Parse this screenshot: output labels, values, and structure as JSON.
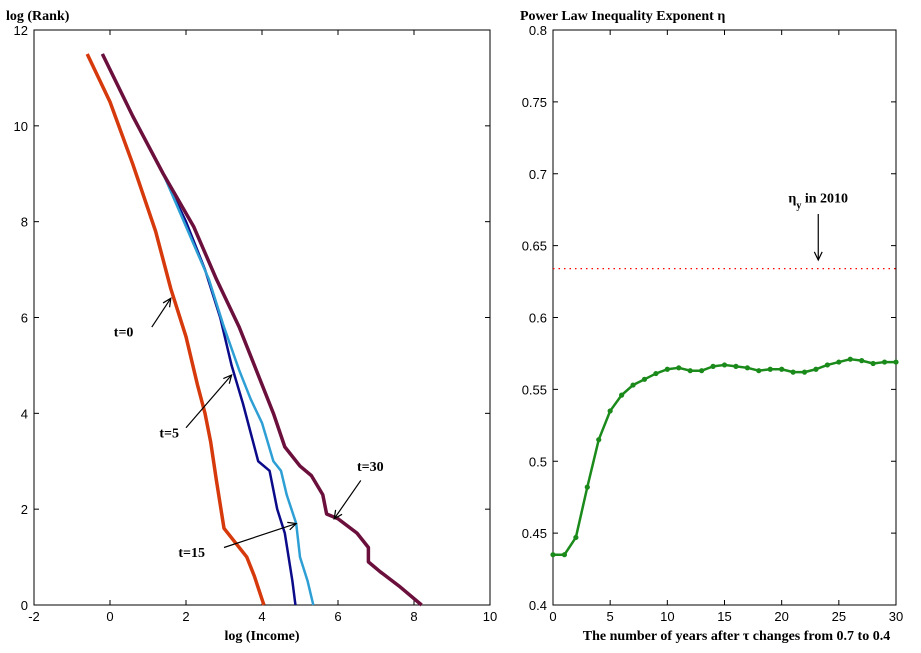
{
  "chart_data": [
    {
      "type": "line",
      "title": "log (Rank)",
      "xlabel": "log (Income)",
      "ylabel": "",
      "xlim": [
        -2,
        10
      ],
      "ylim": [
        0,
        12
      ],
      "xticks": [
        "-2",
        "0",
        "2",
        "4",
        "6",
        "8",
        "10"
      ],
      "yticks": [
        "0",
        "2",
        "4",
        "6",
        "8",
        "10",
        "12"
      ],
      "series": [
        {
          "color": "#d63a0c",
          "width": 3.5,
          "points": [
            [
              -0.6,
              11.5
            ],
            [
              0,
              10.5
            ],
            [
              0.6,
              9.2
            ],
            [
              1.2,
              7.8
            ],
            [
              1.6,
              6.6
            ],
            [
              2.0,
              5.6
            ],
            [
              2.3,
              4.6
            ],
            [
              2.5,
              4.0
            ],
            [
              2.65,
              3.4
            ],
            [
              2.8,
              2.6
            ],
            [
              2.9,
              2.1
            ],
            [
              3.0,
              1.6
            ],
            [
              3.3,
              1.3
            ],
            [
              3.6,
              1.0
            ],
            [
              3.8,
              0.6
            ],
            [
              4.05,
              0
            ]
          ]
        },
        {
          "color": "#0b0b8a",
          "width": 2.5,
          "points": [
            [
              -0.2,
              11.5
            ],
            [
              0.6,
              10.2
            ],
            [
              1.4,
              9.0
            ],
            [
              2.0,
              8.0
            ],
            [
              2.5,
              7.0
            ],
            [
              2.9,
              6.0
            ],
            [
              3.2,
              5.0
            ],
            [
              3.5,
              4.2
            ],
            [
              3.7,
              3.6
            ],
            [
              3.9,
              3.0
            ],
            [
              4.2,
              2.8
            ],
            [
              4.4,
              2.0
            ],
            [
              4.6,
              1.5
            ],
            [
              4.7,
              1.0
            ],
            [
              4.8,
              0.5
            ],
            [
              4.88,
              0
            ]
          ]
        },
        {
          "color": "#2e9fd4",
          "width": 2.5,
          "points": [
            [
              -0.2,
              11.5
            ],
            [
              0.6,
              10.2
            ],
            [
              1.4,
              9.0
            ],
            [
              2.0,
              7.9
            ],
            [
              2.6,
              6.8
            ],
            [
              3.0,
              5.8
            ],
            [
              3.4,
              4.9
            ],
            [
              3.7,
              4.3
            ],
            [
              4.0,
              3.8
            ],
            [
              4.3,
              3.0
            ],
            [
              4.5,
              2.8
            ],
            [
              4.65,
              2.3
            ],
            [
              4.9,
              1.7
            ],
            [
              5.0,
              1.0
            ],
            [
              5.2,
              0.5
            ],
            [
              5.35,
              0
            ]
          ]
        },
        {
          "color": "#6b0f3c",
          "width": 3.5,
          "points": [
            [
              -0.2,
              11.5
            ],
            [
              0.6,
              10.2
            ],
            [
              1.4,
              9.0
            ],
            [
              2.2,
              7.9
            ],
            [
              2.8,
              6.8
            ],
            [
              3.4,
              5.8
            ],
            [
              3.9,
              4.8
            ],
            [
              4.3,
              4.0
            ],
            [
              4.6,
              3.3
            ],
            [
              5.0,
              2.9
            ],
            [
              5.3,
              2.7
            ],
            [
              5.6,
              2.3
            ],
            [
              5.7,
              1.9
            ],
            [
              6.0,
              1.8
            ],
            [
              6.5,
              1.5
            ],
            [
              6.8,
              1.2
            ],
            [
              6.8,
              0.9
            ],
            [
              7.1,
              0.7
            ],
            [
              7.6,
              0.4
            ],
            [
              8.2,
              0
            ]
          ]
        }
      ],
      "annotations": [
        {
          "text": "t=0",
          "text_xy": [
            0.1,
            5.6
          ],
          "arrow_from": [
            1.1,
            5.8
          ],
          "arrow_to": [
            1.6,
            6.4
          ]
        },
        {
          "text": "t=5",
          "text_xy": [
            1.3,
            3.5
          ],
          "arrow_from": [
            2.0,
            3.7
          ],
          "arrow_to": [
            3.2,
            4.8
          ]
        },
        {
          "text": "t=15",
          "text_xy": [
            1.8,
            1.0
          ],
          "arrow_from": [
            3.0,
            1.2
          ],
          "arrow_to": [
            4.9,
            1.7
          ]
        },
        {
          "text": "t=30",
          "text_xy": [
            6.5,
            2.8
          ],
          "arrow_from": [
            6.6,
            2.6
          ],
          "arrow_to": [
            5.9,
            1.8
          ]
        }
      ]
    },
    {
      "type": "line",
      "title": "Power Law Inequality Exponent η",
      "xlabel": "The number of years after τ changes from 0.7 to 0.4",
      "ylabel": "",
      "xlim": [
        0,
        30
      ],
      "ylim": [
        0.4,
        0.8
      ],
      "xticks": [
        "0",
        "5",
        "10",
        "15",
        "20",
        "25",
        "30"
      ],
      "yticks": [
        "0.4",
        "0.45",
        "0.5",
        "0.55",
        "0.6",
        "0.65",
        "0.7",
        "0.75",
        "0.8"
      ],
      "reference_line": {
        "y": 0.634,
        "color": "#ff0000",
        "style": "dotted"
      },
      "annotation": {
        "label": "η",
        "subscript": "y",
        "suffix": " in 2010",
        "text_xy": [
          23.2,
          0.68
        ],
        "arrow_from": [
          23.2,
          0.672
        ],
        "arrow_to": [
          23.2,
          0.64
        ]
      },
      "series": [
        {
          "color": "#1a8a1a",
          "x": [
            0,
            1,
            2,
            3,
            4,
            5,
            6,
            7,
            8,
            9,
            10,
            11,
            12,
            13,
            14,
            15,
            16,
            17,
            18,
            19,
            20,
            21,
            22,
            23,
            24,
            25,
            26,
            27,
            28,
            29,
            30
          ],
          "y": [
            0.435,
            0.435,
            0.447,
            0.482,
            0.515,
            0.535,
            0.546,
            0.553,
            0.557,
            0.561,
            0.564,
            0.565,
            0.563,
            0.563,
            0.566,
            0.567,
            0.566,
            0.565,
            0.563,
            0.564,
            0.564,
            0.562,
            0.562,
            0.564,
            0.567,
            0.569,
            0.571,
            0.57,
            0.568,
            0.569,
            0.569
          ]
        }
      ]
    }
  ]
}
